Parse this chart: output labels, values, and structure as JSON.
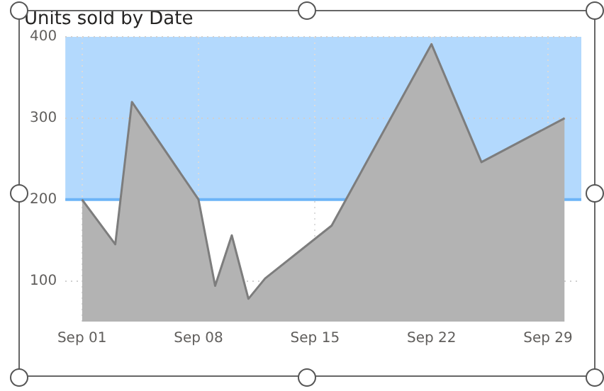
{
  "chart_data": {
    "type": "area",
    "title": "Units sold by Date",
    "x": [
      "--09-01",
      "--09-03",
      "--09-04",
      "--09-08",
      "--09-09",
      "--09-10",
      "--09-11",
      "--09-12",
      "--09-16",
      "--09-22",
      "--09-25",
      "--09-30"
    ],
    "series": [
      {
        "color": "#b3b3b3",
        "values": [
          200,
          145,
          320,
          200,
          94,
          156,
          78,
          103,
          168,
          391,
          246,
          300
        ]
      }
    ],
    "xlim": [
      "--08-31",
      "--10-01"
    ],
    "xticks": [
      {
        "value": "--09-01",
        "label": "Sep 01"
      },
      {
        "value": "--09-08",
        "label": "Sep 08"
      },
      {
        "value": "--09-15",
        "label": "Sep 15"
      },
      {
        "value": "--09-22",
        "label": "Sep 22"
      },
      {
        "value": "--09-29",
        "label": "Sep 29"
      }
    ],
    "ylim": [
      50,
      400
    ],
    "yticks": [
      100,
      200,
      300,
      400
    ],
    "bands": [
      {
        "axis": "y",
        "from": 200,
        "to": 400,
        "color": "#b3d9fd"
      }
    ],
    "ref_lines": [
      {
        "axis": "y",
        "value": 200,
        "color": "#6cb4f7"
      }
    ],
    "grid": true,
    "line_style": "solid",
    "marker": "none"
  }
}
